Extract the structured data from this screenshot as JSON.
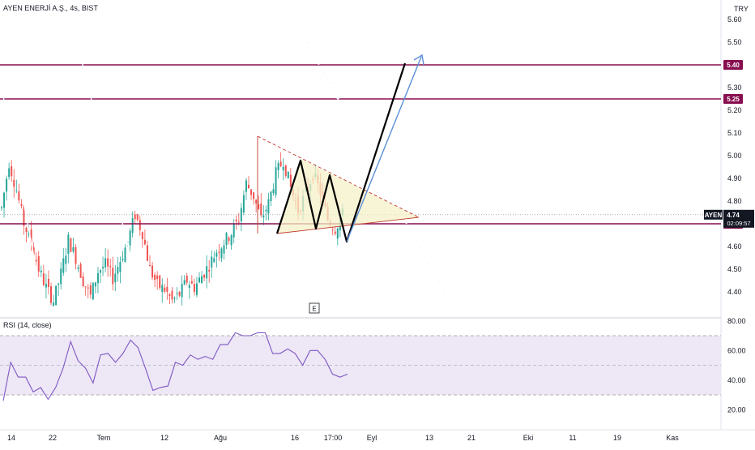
{
  "header": {
    "symbol_title": "AYEN ENERJİ A.Ş., 4s, BIST",
    "currency": "TRY"
  },
  "colors": {
    "up_candle": "#26a69a",
    "down_candle": "#ef5350",
    "level_line": "#880e4f",
    "rsi_line": "#7e57c2",
    "rsi_band": "#ede7f6",
    "triangle_fill": "#f5f0c8",
    "triangle_edge": "#c0392b",
    "projection_arrow": "#5b8fd6",
    "pattern_line": "#000000"
  },
  "indicator": {
    "rsi_title": "RSI (14, close)"
  },
  "price_axis": {
    "ticks": [
      "5.60",
      "5.50",
      "5.40",
      "5.30",
      "5.20",
      "5.10",
      "5.00",
      "4.90",
      "4.80",
      "4.70",
      "4.60",
      "4.50",
      "4.40"
    ],
    "level_labels": [
      "5.40",
      "5.25",
      "4.70"
    ],
    "symbol_tag": "AYEN",
    "last_price": "4.74",
    "countdown": "02:09:57"
  },
  "rsi_axis": {
    "ticks": [
      "80.00",
      "60.00",
      "40.00",
      "20.00"
    ]
  },
  "time_axis": {
    "ticks": [
      "14",
      "22",
      "Tem",
      "12",
      "Ağu",
      "16",
      "17:00",
      "Eyl",
      "13",
      "21",
      "Eki",
      "11",
      "19",
      "Kas"
    ]
  },
  "earnings_marker": "E",
  "chart_data": {
    "type": "candlestick",
    "title": "AYEN ENERJİ A.Ş., 4s, BIST",
    "ylabel": "TRY",
    "ylim": [
      4.33,
      5.66
    ],
    "levels": [
      5.4,
      5.25,
      4.7
    ],
    "last_price": 4.74,
    "series": [
      {
        "name": "price",
        "approx_closes": [
          4.77,
          4.97,
          4.85,
          4.7,
          4.62,
          4.5,
          4.42,
          4.36,
          4.48,
          4.63,
          4.55,
          4.45,
          4.38,
          4.49,
          4.52,
          4.46,
          4.54,
          4.62,
          4.74,
          4.66,
          4.5,
          4.43,
          4.41,
          4.36,
          4.39,
          4.45,
          4.42,
          4.47,
          4.52,
          4.58,
          4.62,
          4.66,
          4.72,
          4.88,
          4.82,
          4.72,
          4.79,
          4.92,
          4.98,
          4.86,
          4.76,
          4.83,
          4.92,
          4.84,
          4.72,
          4.68,
          4.74
        ]
      },
      {
        "name": "RSI (14, close)",
        "ylim": [
          10,
          85
        ],
        "bands": [
          70,
          50,
          30
        ],
        "approx_values": [
          28,
          50,
          44,
          40,
          34,
          33,
          29,
          33,
          50,
          64,
          55,
          46,
          40,
          55,
          60,
          50,
          60,
          65,
          64,
          46,
          35,
          33,
          38,
          50,
          52,
          55,
          56,
          54,
          56,
          62,
          66,
          70,
          72,
          68,
          74,
          70,
          60,
          56,
          63,
          56,
          52,
          58,
          62,
          52,
          46,
          40,
          46
        ]
      }
    ]
  }
}
